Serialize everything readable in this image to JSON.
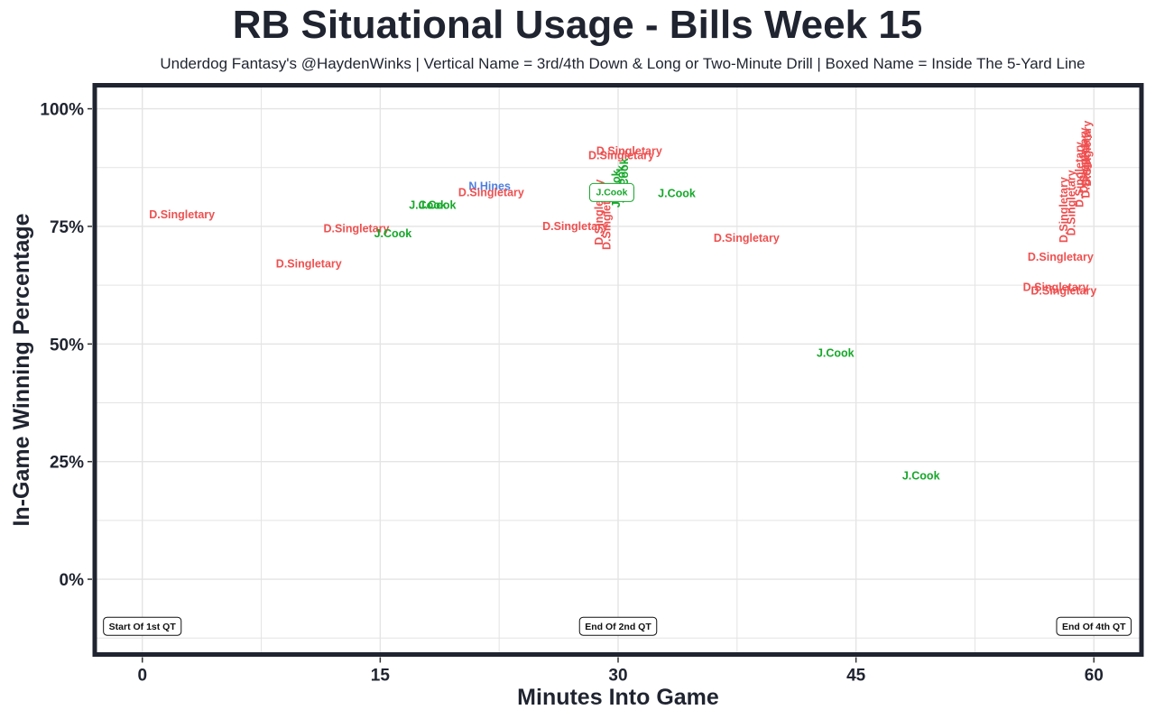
{
  "chart_data": {
    "type": "scatter",
    "title": "RB Situational Usage - Bills Week 15",
    "subtitle": "Underdog Fantasy's @HaydenWinks | Vertical Name = 3rd/4th Down & Long or Two-Minute Drill | Boxed Name = Inside The 5-Yard Line",
    "xlabel": "Minutes Into Game",
    "ylabel": "In-Game Winning Percentage",
    "xlim": [
      -3,
      63
    ],
    "ylim": [
      -16,
      105
    ],
    "x_ticks": [
      0,
      15,
      30,
      45,
      60
    ],
    "x_tick_labels": [
      "0",
      "15",
      "30",
      "45",
      "60"
    ],
    "y_ticks": [
      0,
      25,
      50,
      75,
      100
    ],
    "y_tick_labels": [
      "0%",
      "25%",
      "50%",
      "75%",
      "100%"
    ],
    "grid": true,
    "colors": {
      "D.Singletary": "#ef5050",
      "J.Cook": "#16a82a",
      "N.Hines": "#4f7fe0",
      "frame": "#1f2430"
    },
    "markers": [
      {
        "x": 0,
        "y": -10,
        "label": "Start Of 1st QT"
      },
      {
        "x": 30,
        "y": -10,
        "label": "End Of 2nd QT"
      },
      {
        "x": 60,
        "y": -10,
        "label": "End Of 4th QT"
      }
    ],
    "points": [
      {
        "player": "D.Singletary",
        "x": 2.5,
        "y": 77.5,
        "vertical": false,
        "boxed": false
      },
      {
        "player": "D.Singletary",
        "x": 10.5,
        "y": 67,
        "vertical": false,
        "boxed": false
      },
      {
        "player": "D.Singletary",
        "x": 13.5,
        "y": 74.5,
        "vertical": false,
        "boxed": false
      },
      {
        "player": "J.Cook",
        "x": 15.8,
        "y": 73.5,
        "vertical": false,
        "boxed": false
      },
      {
        "player": "J.Cook",
        "x": 18,
        "y": 79.5,
        "vertical": false,
        "boxed": false
      },
      {
        "player": "J.Cook",
        "x": 18.6,
        "y": 79.5,
        "vertical": false,
        "boxed": false
      },
      {
        "player": "N.Hines",
        "x": 21.9,
        "y": 83.5,
        "vertical": false,
        "boxed": false
      },
      {
        "player": "D.Singletary",
        "x": 22,
        "y": 82.2,
        "vertical": false,
        "boxed": false
      },
      {
        "player": "D.Singletary",
        "x": 27.3,
        "y": 75,
        "vertical": false,
        "boxed": false
      },
      {
        "player": "D.Singletary",
        "x": 30.7,
        "y": 91,
        "vertical": false,
        "boxed": false
      },
      {
        "player": "D.Singletary",
        "x": 30.2,
        "y": 90,
        "vertical": false,
        "boxed": false
      },
      {
        "player": "D.Singletary",
        "x": 28.8,
        "y": 78,
        "vertical": true,
        "boxed": false
      },
      {
        "player": "D.Singletary",
        "x": 29.3,
        "y": 77,
        "vertical": true,
        "boxed": false
      },
      {
        "player": "J.Cook",
        "x": 29.9,
        "y": 83,
        "vertical": true,
        "boxed": false
      },
      {
        "player": "J.Cook",
        "x": 30.2,
        "y": 84,
        "vertical": true,
        "boxed": false
      },
      {
        "player": "J.Cook",
        "x": 30.4,
        "y": 85.5,
        "vertical": true,
        "boxed": false
      },
      {
        "player": "J.Cook",
        "x": 29.6,
        "y": 82.2,
        "vertical": false,
        "boxed": true
      },
      {
        "player": "J.Cook",
        "x": 33.7,
        "y": 82,
        "vertical": false,
        "boxed": false
      },
      {
        "player": "D.Singletary",
        "x": 38.1,
        "y": 72.5,
        "vertical": false,
        "boxed": false
      },
      {
        "player": "J.Cook",
        "x": 43.7,
        "y": 48,
        "vertical": false,
        "boxed": false
      },
      {
        "player": "J.Cook",
        "x": 49.1,
        "y": 22,
        "vertical": false,
        "boxed": false
      },
      {
        "player": "D.Singletary",
        "x": 57.6,
        "y": 62,
        "vertical": false,
        "boxed": false
      },
      {
        "player": "D.Singletary",
        "x": 58.1,
        "y": 61.3,
        "vertical": false,
        "boxed": false
      },
      {
        "player": "D.Singletary",
        "x": 57.9,
        "y": 68.5,
        "vertical": false,
        "boxed": false
      },
      {
        "player": "D.Singletary",
        "x": 58.1,
        "y": 78.5,
        "vertical": true,
        "boxed": false
      },
      {
        "player": "D.Singletary",
        "x": 58.6,
        "y": 80,
        "vertical": true,
        "boxed": false
      },
      {
        "player": "D.Singletary",
        "x": 59.1,
        "y": 86,
        "vertical": true,
        "boxed": false
      },
      {
        "player": "D.Singletary",
        "x": 59.4,
        "y": 89,
        "vertical": true,
        "boxed": false
      },
      {
        "player": "D.Singletary",
        "x": 59.5,
        "y": 88,
        "vertical": true,
        "boxed": false
      },
      {
        "player": "D.Singletary",
        "x": 59.6,
        "y": 90.5,
        "vertical": true,
        "boxed": false
      }
    ]
  }
}
